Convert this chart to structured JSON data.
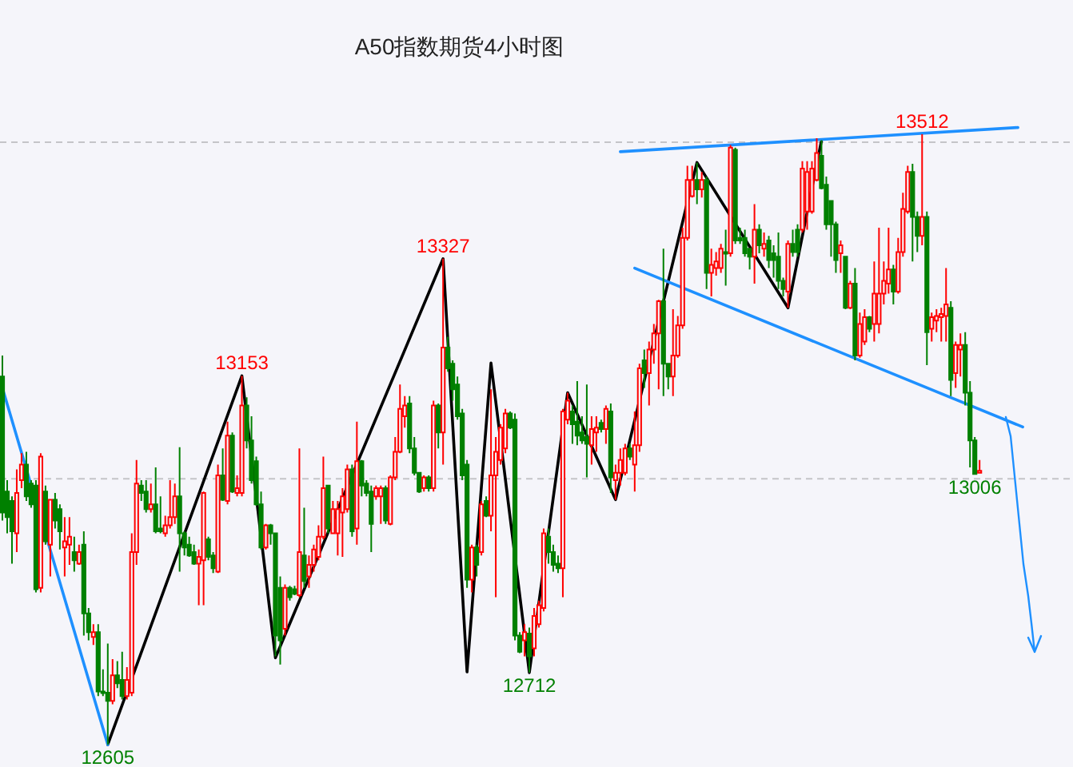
{
  "chart_data": {
    "type": "candlestick",
    "title": "A50指数期货4小时图",
    "categories": [
      null,
      null,
      null,
      null,
      null,
      null,
      null,
      null,
      null,
      null,
      null,
      null,
      null,
      null,
      null,
      null,
      null,
      null,
      null,
      null,
      null,
      null,
      null,
      null,
      null,
      null,
      null,
      null,
      null,
      null,
      null,
      null,
      null,
      null,
      null,
      null,
      null,
      null,
      null,
      null,
      null,
      null,
      null,
      null,
      null,
      null,
      null,
      null,
      null,
      null,
      null,
      null,
      null,
      null,
      null,
      null,
      null,
      null,
      null,
      null,
      null,
      null,
      null,
      null,
      null,
      null,
      null,
      null,
      null,
      null,
      null,
      null,
      null,
      null,
      null,
      null,
      null,
      null,
      null,
      null,
      null,
      null,
      null,
      null,
      null,
      null,
      null,
      null,
      null,
      null,
      null,
      null,
      null,
      null,
      null,
      null,
      null,
      null,
      null,
      null,
      null,
      null,
      null,
      null,
      null,
      null,
      null,
      null,
      null,
      null,
      null,
      null,
      null,
      null,
      null,
      null,
      null,
      null,
      null,
      null,
      null,
      null,
      null,
      null,
      null,
      null,
      null,
      null,
      null,
      null,
      null,
      null,
      null,
      null,
      null,
      null,
      null,
      null,
      null,
      null,
      null,
      null,
      null,
      null,
      null,
      null,
      null,
      null,
      null,
      null,
      null,
      null,
      null,
      null,
      null,
      null,
      null,
      null,
      null,
      null,
      null,
      null,
      null,
      null,
      null,
      null,
      null,
      null,
      null,
      null,
      null,
      null,
      null,
      null,
      null,
      null,
      null,
      null,
      null,
      null,
      null,
      null,
      null,
      null,
      null,
      null,
      null,
      null,
      null,
      null,
      null,
      null,
      null,
      null,
      null,
      null,
      null,
      null,
      null,
      null,
      null,
      null,
      null,
      null,
      null,
      null,
      null,
      null,
      null,
      null,
      null,
      null,
      null,
      null,
      null,
      null,
      null,
      null,
      null,
      null,
      null,
      null,
      null,
      null
    ],
    "ohlc": [
      [
        13152,
        13183,
        12938,
        12950
      ],
      [
        12981,
        12998,
        12919,
        12943
      ],
      [
        12967,
        12974,
        12874,
        12922
      ],
      [
        12919,
        13014,
        12891,
        12979
      ],
      [
        12998,
        13038,
        12986,
        13021
      ],
      [
        13021,
        13040,
        12967,
        12974
      ],
      [
        12993,
        12998,
        12957,
        12962
      ],
      [
        12990,
        12998,
        12831,
        12836
      ],
      [
        12838,
        13038,
        12831,
        13033
      ],
      [
        12981,
        12990,
        12902,
        12907
      ],
      [
        12902,
        12969,
        12855,
        12969
      ],
      [
        12969,
        12979,
        12926,
        12938
      ],
      [
        12955,
        12962,
        12895,
        12922
      ],
      [
        12898,
        12943,
        12855,
        12907
      ],
      [
        12902,
        12943,
        12872,
        12914
      ],
      [
        12891,
        12914,
        12862,
        12879
      ],
      [
        12874,
        12902,
        12872,
        12891
      ],
      [
        12902,
        12922,
        12767,
        12800
      ],
      [
        12800,
        12808,
        12760,
        12772
      ],
      [
        12765,
        12784,
        12753,
        12772
      ],
      [
        12772,
        12784,
        12677,
        12684
      ],
      [
        12684,
        12717,
        12677,
        12682
      ],
      [
        12682,
        12755,
        12605,
        12670
      ],
      [
        12670,
        12732,
        12665,
        12708
      ],
      [
        12708,
        12729,
        12689,
        12696
      ],
      [
        12701,
        12743,
        12672,
        12677
      ],
      [
        12677,
        12720,
        12672,
        12701
      ],
      [
        12682,
        12919,
        12677,
        12891
      ],
      [
        12891,
        13028,
        12872,
        12993
      ],
      [
        12990,
        12998,
        12967,
        12979
      ],
      [
        12981,
        12998,
        12950,
        12955
      ],
      [
        12955,
        12993,
        12950,
        12962
      ],
      [
        12962,
        13017,
        12919,
        12922
      ],
      [
        12926,
        12974,
        12919,
        12922
      ],
      [
        12919,
        12945,
        12914,
        12931
      ],
      [
        12931,
        12998,
        12926,
        12943
      ],
      [
        12943,
        12993,
        12933,
        12974
      ],
      [
        12974,
        13047,
        12862,
        12919
      ],
      [
        12919,
        12922,
        12886,
        12898
      ],
      [
        12902,
        12914,
        12884,
        12886
      ],
      [
        12891,
        12902,
        12872,
        12874
      ],
      [
        12874,
        12895,
        12812,
        12884
      ],
      [
        12879,
        12981,
        12812,
        12979
      ],
      [
        12910,
        12914,
        12879,
        12884
      ],
      [
        12886,
        12891,
        12860,
        12867
      ],
      [
        12862,
        13021,
        12860,
        13005
      ],
      [
        13005,
        13045,
        12967,
        12969
      ],
      [
        12967,
        13085,
        12962,
        13064
      ],
      [
        13064,
        13069,
        12979,
        12981
      ],
      [
        12979,
        13005,
        12974,
        12986
      ],
      [
        12979,
        13153,
        12974,
        13109
      ],
      [
        13109,
        13121,
        13045,
        13057
      ],
      [
        13057,
        13093,
        12993,
        12998
      ],
      [
        13026,
        13033,
        12960,
        12962
      ],
      [
        12962,
        12981,
        12895,
        12898
      ],
      [
        12898,
        12933,
        12895,
        12931
      ],
      [
        12931,
        12933,
        12902,
        12919
      ],
      [
        12919,
        12919,
        12736,
        12767
      ],
      [
        12838,
        12855,
        12724,
        12760
      ],
      [
        12777,
        12843,
        12767,
        12838
      ],
      [
        12838,
        12841,
        12819,
        12824
      ],
      [
        12836,
        12841,
        12827,
        12829
      ],
      [
        12827,
        13045,
        12824,
        12891
      ],
      [
        12886,
        12957,
        12838,
        12848
      ],
      [
        12855,
        12886,
        12838,
        12872
      ],
      [
        12872,
        12902,
        12862,
        12895
      ],
      [
        12884,
        12931,
        12879,
        12914
      ],
      [
        12914,
        13033,
        12910,
        12986
      ],
      [
        12990,
        12990,
        12919,
        12926
      ],
      [
        12919,
        12967,
        12919,
        12955
      ],
      [
        12919,
        12967,
        12886,
        12955
      ],
      [
        12950,
        12986,
        12884,
        12974
      ],
      [
        12955,
        13021,
        12950,
        13014
      ],
      [
        13014,
        13021,
        12914,
        12922
      ],
      [
        12926,
        13085,
        12902,
        13026
      ],
      [
        13026,
        13028,
        12974,
        12990
      ],
      [
        12993,
        12998,
        12974,
        12979
      ],
      [
        12981,
        12990,
        12891,
        12933
      ],
      [
        12974,
        12990,
        12969,
        12986
      ],
      [
        12974,
        12990,
        12933,
        12986
      ],
      [
        12986,
        12990,
        12933,
        12938
      ],
      [
        12933,
        13005,
        12931,
        13002
      ],
      [
        13002,
        13062,
        12998,
        13040
      ],
      [
        13040,
        13140,
        13038,
        13104
      ],
      [
        13093,
        13123,
        13076,
        13109
      ],
      [
        13112,
        13123,
        13038,
        13045
      ],
      [
        13045,
        13062,
        13005,
        13009
      ],
      [
        13009,
        13009,
        12979,
        12981
      ],
      [
        12986,
        13005,
        12981,
        13002
      ],
      [
        13002,
        13005,
        12981,
        12986
      ],
      [
        12986,
        13116,
        12981,
        13109
      ],
      [
        13109,
        13112,
        13045,
        13069
      ],
      [
        13069,
        13327,
        13021,
        13195
      ],
      [
        13195,
        13211,
        13159,
        13164
      ],
      [
        13171,
        13176,
        13116,
        13133
      ],
      [
        13140,
        13152,
        13088,
        13093
      ],
      [
        13097,
        13104,
        12998,
        13005
      ],
      [
        13021,
        13028,
        12838,
        12850
      ],
      [
        12850,
        12902,
        12831,
        12898
      ],
      [
        12898,
        12902,
        12855,
        12872
      ],
      [
        12891,
        12967,
        12886,
        12962
      ],
      [
        12967,
        12974,
        12943,
        12945
      ],
      [
        12945,
        13133,
        12922,
        13005
      ],
      [
        13005,
        13062,
        12824,
        13040
      ],
      [
        13028,
        13081,
        13021,
        13076
      ],
      [
        13045,
        13104,
        13038,
        13097
      ],
      [
        13097,
        13100,
        13074,
        13076
      ],
      [
        13088,
        13097,
        12760,
        12767
      ],
      [
        12767,
        12772,
        12741,
        12743
      ],
      [
        12760,
        12784,
        12736,
        12772
      ],
      [
        12770,
        12779,
        12712,
        12736
      ],
      [
        12748,
        12808,
        12736,
        12796
      ],
      [
        12784,
        12819,
        12779,
        12812
      ],
      [
        12808,
        12926,
        12803,
        12919
      ],
      [
        12914,
        12926,
        12874,
        12891
      ],
      [
        12891,
        12902,
        12862,
        12872
      ],
      [
        12874,
        12886,
        12860,
        12867
      ],
      [
        12867,
        13104,
        12824,
        13100
      ],
      [
        13088,
        13128,
        13081,
        13116
      ],
      [
        13100,
        13109,
        13052,
        13081
      ],
      [
        13085,
        13145,
        13050,
        13064
      ],
      [
        13069,
        13093,
        13052,
        13057
      ],
      [
        13062,
        13140,
        13002,
        13052
      ],
      [
        13050,
        13093,
        13021,
        13074
      ],
      [
        13069,
        13093,
        13040,
        13076
      ],
      [
        13083,
        13088,
        13069,
        13074
      ],
      [
        13074,
        13109,
        13052,
        13104
      ],
      [
        13100,
        13112,
        12979,
        13002
      ],
      [
        12998,
        13021,
        12969,
        13009
      ],
      [
        13009,
        13045,
        12990,
        13028
      ],
      [
        13009,
        13052,
        13005,
        13045
      ],
      [
        13045,
        13052,
        13028,
        13033
      ],
      [
        13021,
        13100,
        12981,
        13050
      ],
      [
        13050,
        13171,
        13040,
        13164
      ],
      [
        13176,
        13192,
        13135,
        13157
      ],
      [
        13157,
        13204,
        13109,
        13192
      ],
      [
        13192,
        13230,
        13171,
        13216
      ],
      [
        13216,
        13266,
        13133,
        13264
      ],
      [
        13264,
        13342,
        13123,
        13171
      ],
      [
        13171,
        13171,
        13133,
        13152
      ],
      [
        13152,
        13252,
        13123,
        13183
      ],
      [
        13183,
        13242,
        13180,
        13228
      ],
      [
        13228,
        13373,
        13223,
        13358
      ],
      [
        13358,
        13465,
        13354,
        13444
      ],
      [
        13420,
        13465,
        13418,
        13444
      ],
      [
        13444,
        13470,
        13408,
        13430
      ],
      [
        13430,
        13456,
        13418,
        13444
      ],
      [
        13444,
        13449,
        13282,
        13306
      ],
      [
        13306,
        13342,
        13271,
        13318
      ],
      [
        13313,
        13337,
        13302,
        13323
      ],
      [
        13313,
        13349,
        13306,
        13342
      ],
      [
        13337,
        13370,
        13287,
        13335
      ],
      [
        13335,
        13496,
        13330,
        13492
      ],
      [
        13489,
        13492,
        13349,
        13354
      ],
      [
        13358,
        13373,
        13349,
        13354
      ],
      [
        13358,
        13370,
        13330,
        13335
      ],
      [
        13342,
        13342,
        13311,
        13330
      ],
      [
        13330,
        13408,
        13290,
        13370
      ],
      [
        13370,
        13378,
        13335,
        13347
      ],
      [
        13342,
        13366,
        13330,
        13349
      ],
      [
        13354,
        13361,
        13313,
        13325
      ],
      [
        13335,
        13347,
        13299,
        13325
      ],
      [
        13330,
        13366,
        13282,
        13294
      ],
      [
        13294,
        13299,
        13271,
        13282
      ],
      [
        13278,
        13354,
        13254,
        13349
      ],
      [
        13349,
        13370,
        13330,
        13337
      ],
      [
        13370,
        13378,
        13330,
        13337
      ],
      [
        13370,
        13472,
        13366,
        13461
      ],
      [
        13397,
        13472,
        13370,
        13456
      ],
      [
        13397,
        13472,
        13394,
        13461
      ],
      [
        13444,
        13506,
        13442,
        13484
      ],
      [
        13480,
        13503,
        13430,
        13432
      ],
      [
        13437,
        13449,
        13370,
        13378
      ],
      [
        13413,
        13413,
        13330,
        13378
      ],
      [
        13378,
        13382,
        13306,
        13325
      ],
      [
        13335,
        13354,
        13306,
        13347
      ],
      [
        13330,
        13330,
        13252,
        13254
      ],
      [
        13254,
        13294,
        13252,
        13290
      ],
      [
        13290,
        13313,
        13176,
        13183
      ],
      [
        13183,
        13247,
        13180,
        13230
      ],
      [
        13204,
        13252,
        13199,
        13240
      ],
      [
        13240,
        13242,
        13218,
        13223
      ],
      [
        13230,
        13323,
        13204,
        13275
      ],
      [
        13230,
        13373,
        13216,
        13275
      ],
      [
        13275,
        13323,
        13259,
        13294
      ],
      [
        13290,
        13373,
        13275,
        13311
      ],
      [
        13311,
        13318,
        13259,
        13278
      ],
      [
        13278,
        13358,
        13275,
        13337
      ],
      [
        13337,
        13425,
        13330,
        13401
      ],
      [
        13397,
        13465,
        13394,
        13456
      ],
      [
        13456,
        13468,
        13323,
        13389
      ],
      [
        13389,
        13397,
        13337,
        13361
      ],
      [
        13361,
        13512,
        13347,
        13389
      ],
      [
        13389,
        13397,
        13169,
        13218
      ],
      [
        13223,
        13247,
        13204,
        13240
      ],
      [
        13235,
        13252,
        13218,
        13242
      ],
      [
        13240,
        13254,
        13204,
        13245
      ],
      [
        13242,
        13313,
        13204,
        13259
      ],
      [
        13254,
        13264,
        13123,
        13147
      ],
      [
        13157,
        13204,
        13135,
        13199
      ],
      [
        13192,
        13216,
        13152,
        13199
      ],
      [
        13199,
        13218,
        13109,
        13128
      ],
      [
        13128,
        13145,
        13017,
        13057
      ],
      [
        13057,
        13062,
        13006,
        13007
      ],
      [
        13009,
        13028,
        13008,
        13012
      ],
      null,
      null,
      null,
      null,
      null,
      null,
      null,
      null,
      null,
      null,
      null,
      null,
      null,
      null,
      null,
      null,
      null,
      null,
      null
    ],
    "colors": [
      "#008000",
      "#008000",
      "#008000",
      "#ff0000",
      "#ff0000",
      "#008000",
      "#008000",
      "#008000",
      "#ff0000",
      "#008000",
      "#ff0000",
      "#008000",
      "#008000",
      "#ff0000",
      "#ff0000",
      "#008000",
      "#ff0000",
      "#008000",
      "#008000",
      "#ff0000",
      "#008000",
      "#008000",
      "#008000",
      "#ff0000",
      "#008000",
      "#008000",
      "#ff0000",
      "#ff0000",
      "#ff0000",
      "#008000",
      "#008000",
      "#ff0000",
      "#008000",
      "#008000",
      "#ff0000",
      "#ff0000",
      "#ff0000",
      "#008000",
      "#008000",
      "#008000",
      "#008000",
      "#ff0000",
      "#ff0000",
      "#008000",
      "#008000",
      "#ff0000",
      "#008000",
      "#ff0000",
      "#008000",
      "#ff0000",
      "#ff0000",
      "#008000",
      "#008000",
      "#008000",
      "#008000",
      "#ff0000",
      "#008000",
      "#008000",
      "#008000",
      "#ff0000",
      "#008000",
      "#008000",
      "#ff0000",
      "#008000",
      "#ff0000",
      "#ff0000",
      "#ff0000",
      "#ff0000",
      "#008000",
      "#ff0000",
      "#ff0000",
      "#ff0000",
      "#ff0000",
      "#008000",
      "#ff0000",
      "#008000",
      "#008000",
      "#008000",
      "#ff0000",
      "#ff0000",
      "#008000",
      "#ff0000",
      "#ff0000",
      "#ff0000",
      "#ff0000",
      "#008000",
      "#008000",
      "#008000",
      "#ff0000",
      "#008000",
      "#ff0000",
      "#008000",
      "#ff0000",
      "#008000",
      "#008000",
      "#008000",
      "#008000",
      "#008000",
      "#ff0000",
      "#008000",
      "#ff0000",
      "#008000",
      "#ff0000",
      "#ff0000",
      "#ff0000",
      "#ff0000",
      "#008000",
      "#008000",
      "#008000",
      "#ff0000",
      "#008000",
      "#ff0000",
      "#ff0000",
      "#ff0000",
      "#008000",
      "#008000",
      "#008000",
      "#ff0000",
      "#ff0000",
      "#008000",
      "#008000",
      "#008000",
      "#008000",
      "#ff0000",
      "#ff0000",
      "#008000",
      "#ff0000",
      "#008000",
      "#ff0000",
      "#ff0000",
      "#ff0000",
      "#008000",
      "#ff0000",
      "#ff0000",
      "#008000",
      "#ff0000",
      "#ff0000",
      "#ff0000",
      "#008000",
      "#008000",
      "#ff0000",
      "#ff0000",
      "#ff0000",
      "#ff0000",
      "#ff0000",
      "#008000",
      "#ff0000",
      "#008000",
      "#ff0000",
      "#ff0000",
      "#ff0000",
      "#008000",
      "#ff0000",
      "#008000",
      "#008000",
      "#008000",
      "#008000",
      "#ff0000",
      "#008000",
      "#ff0000",
      "#008000",
      "#008000",
      "#008000",
      "#008000",
      "#ff0000",
      "#008000",
      "#008000",
      "#ff0000",
      "#ff0000",
      "#ff0000",
      "#ff0000",
      "#008000",
      "#008000",
      "#008000",
      "#008000",
      "#ff0000",
      "#008000",
      "#ff0000",
      "#008000",
      "#ff0000",
      "#ff0000",
      "#008000",
      "#ff0000",
      "#ff0000",
      "#ff0000",
      "#ff0000",
      "#008000",
      "#ff0000",
      "#ff0000",
      "#ff0000",
      "#008000",
      "#008000",
      "#ff0000",
      "#008000",
      "#ff0000",
      "#ff0000",
      "#ff0000",
      "#ff0000",
      "#008000",
      "#ff0000",
      "#ff0000",
      "#008000",
      "#008000",
      "#008000",
      "#ff0000",
      null,
      null,
      null,
      null,
      null,
      null,
      null,
      null,
      null,
      null,
      null,
      null,
      null,
      null,
      null,
      null,
      null,
      null,
      null
    ],
    "series": [
      {
        "type": "line",
        "color": "#000000",
        "values": [
          null,
          null,
          null,
          null,
          null,
          null,
          null,
          null,
          null,
          null,
          null,
          null,
          null,
          null,
          null,
          null,
          null,
          null,
          null,
          null,
          null,
          null,
          12605,
          null,
          null,
          null,
          null,
          null,
          null,
          null,
          null,
          null,
          null,
          null,
          null,
          null,
          null,
          null,
          null,
          null,
          null,
          null,
          null,
          null,
          null,
          null,
          null,
          null,
          null,
          null,
          13153,
          null,
          null,
          null,
          null,
          null,
          null,
          12734,
          null,
          null,
          null,
          null,
          null,
          null,
          null,
          null,
          null,
          null,
          null,
          null,
          null,
          null,
          null,
          null,
          null,
          null,
          null,
          null,
          null,
          null,
          null,
          null,
          null,
          null,
          null,
          null,
          null,
          null,
          null,
          null,
          null,
          null,
          13327,
          null,
          null,
          null,
          null,
          12713,
          null,
          null,
          null,
          null,
          13172,
          null,
          null,
          null,
          null,
          null,
          null,
          null,
          12712,
          null,
          null,
          null,
          null,
          null,
          null,
          null,
          13128,
          null,
          null,
          null,
          null,
          null,
          null,
          null,
          null,
          null,
          12969,
          null,
          null,
          null,
          null,
          null,
          null,
          null,
          null,
          null,
          null,
          null,
          null,
          null,
          null,
          null,
          null,
          13470,
          null,
          null,
          null,
          null,
          null,
          null,
          null,
          null,
          null,
          null,
          null,
          null,
          null,
          null,
          null,
          null,
          null,
          null,
          13254,
          null,
          null,
          null,
          null,
          null,
          null,
          13503,
          null,
          null,
          null,
          null,
          null,
          null,
          null,
          null,
          null,
          null,
          null,
          null,
          null,
          null,
          null,
          null,
          null,
          null,
          null,
          null,
          null,
          null,
          null,
          null,
          null,
          null,
          null,
          null,
          null,
          null,
          null,
          null,
          null,
          null,
          null,
          null,
          null,
          null,
          null,
          null,
          null,
          null,
          null,
          null,
          null,
          null,
          null,
          null,
          null,
          null,
          null,
          null
        ]
      },
      {
        "type": "line",
        "color": "#1e90ff",
        "values": [
          13135,
          null,
          null,
          null,
          null,
          null,
          null,
          null,
          null,
          null,
          null,
          null,
          null,
          null,
          null,
          null,
          null,
          null,
          null,
          null,
          null,
          null,
          12605,
          null,
          null,
          null,
          null,
          null,
          null,
          null,
          null,
          null,
          null,
          null,
          null,
          null,
          null,
          null,
          null,
          null,
          null,
          null,
          null,
          null,
          null,
          null,
          null,
          null,
          null,
          null,
          null,
          null,
          null,
          null,
          null,
          null,
          null,
          null,
          null,
          null,
          null,
          null,
          null,
          null,
          null,
          null,
          null,
          null,
          null,
          null,
          null,
          null,
          null,
          null,
          null,
          null,
          null,
          null,
          null,
          null,
          null,
          null,
          null,
          null,
          null,
          null,
          null,
          null,
          null,
          null,
          null,
          null,
          null,
          null,
          null,
          null,
          null,
          null,
          null,
          null,
          null,
          null,
          null,
          null,
          null,
          null,
          null,
          null,
          null,
          null,
          null,
          null,
          null,
          null,
          null,
          null,
          null,
          null,
          null,
          null,
          null,
          null,
          null,
          null,
          null,
          null,
          null,
          null,
          null,
          null,
          null,
          null,
          null,
          null,
          null,
          null,
          null,
          null,
          null,
          null,
          null,
          null,
          null,
          null,
          null,
          null,
          null,
          null,
          null,
          null,
          null,
          null,
          null,
          null,
          null,
          null,
          null,
          null,
          null,
          null,
          null,
          null,
          null,
          null,
          null,
          null,
          null,
          null,
          null,
          null,
          null,
          null,
          null,
          null,
          null,
          null,
          null,
          null,
          null,
          null,
          null,
          null,
          null,
          null,
          null,
          null,
          null,
          null,
          null,
          null,
          null,
          null,
          null,
          null,
          null,
          null,
          null,
          null,
          null,
          null,
          null,
          null,
          null,
          null,
          null,
          null,
          null,
          null,
          null,
          null,
          null,
          null,
          null,
          null,
          null,
          null,
          null,
          null,
          null,
          null,
          null,
          null,
          null,
          null
        ]
      },
      {
        "type": "line",
        "color": "#1e90ff",
        "values": [
          null,
          null,
          null,
          null,
          null,
          null,
          null,
          null,
          null,
          null,
          null,
          null,
          null,
          null,
          null,
          null,
          null,
          null,
          null,
          null,
          null,
          null,
          null,
          null,
          null,
          null,
          null,
          null,
          null,
          null,
          null,
          null,
          null,
          null,
          null,
          null,
          null,
          null,
          null,
          null,
          null,
          null,
          null,
          null,
          null,
          null,
          null,
          null,
          null,
          null,
          null,
          null,
          null,
          null,
          null,
          null,
          null,
          null,
          null,
          null,
          null,
          null,
          null,
          null,
          null,
          null,
          null,
          null,
          null,
          null,
          null,
          null,
          null,
          null,
          null,
          null,
          null,
          null,
          null,
          null,
          null,
          null,
          null,
          null,
          null,
          null,
          null,
          null,
          null,
          null,
          null,
          null,
          null,
          null,
          null,
          null,
          null,
          null,
          null,
          null,
          null,
          null,
          null,
          null,
          null,
          null,
          null,
          null,
          null,
          null,
          null,
          null,
          null,
          null,
          null,
          null,
          null,
          null,
          null,
          null,
          null,
          null,
          null,
          null,
          null,
          null,
          null,
          null,
          null,
          13486,
          null,
          null,
          null,
          null,
          null,
          null,
          null,
          null,
          null,
          null,
          null,
          null,
          null,
          null,
          null,
          null,
          null,
          null,
          null,
          null,
          null,
          null,
          null,
          null,
          null,
          null,
          null,
          null,
          null,
          null,
          null,
          null,
          null,
          null,
          null,
          null,
          null,
          null,
          null,
          null,
          null,
          null,
          null,
          null,
          null,
          null,
          null,
          null,
          null,
          null,
          null,
          null,
          null,
          null,
          null,
          null,
          null,
          null,
          null,
          null,
          null,
          null,
          null,
          null,
          null,
          null,
          null,
          null,
          null,
          null,
          null,
          null,
          null,
          null,
          null,
          null,
          null,
          null,
          null,
          null,
          null,
          null,
          13522,
          null,
          null,
          null,
          null,
          null,
          null,
          null,
          null,
          null,
          null,
          null
        ]
      },
      {
        "type": "line",
        "color": "#1e90ff",
        "values": [
          null,
          null,
          null,
          null,
          null,
          null,
          null,
          null,
          null,
          null,
          null,
          null,
          null,
          null,
          null,
          null,
          null,
          null,
          null,
          null,
          null,
          null,
          null,
          null,
          null,
          null,
          null,
          null,
          null,
          null,
          null,
          null,
          null,
          null,
          null,
          null,
          null,
          null,
          null,
          null,
          null,
          null,
          null,
          null,
          null,
          null,
          null,
          null,
          null,
          null,
          null,
          null,
          null,
          null,
          null,
          null,
          null,
          null,
          null,
          null,
          null,
          null,
          null,
          null,
          null,
          null,
          null,
          null,
          null,
          null,
          null,
          null,
          null,
          null,
          null,
          null,
          null,
          null,
          null,
          null,
          null,
          null,
          null,
          null,
          null,
          null,
          null,
          null,
          null,
          null,
          null,
          null,
          null,
          null,
          null,
          null,
          null,
          null,
          null,
          null,
          null,
          null,
          null,
          null,
          null,
          null,
          null,
          null,
          null,
          null,
          null,
          null,
          null,
          null,
          null,
          null,
          null,
          null,
          null,
          null,
          null,
          null,
          null,
          null,
          null,
          null,
          null,
          null,
          null,
          null,
          null,
          null,
          13313,
          null,
          null,
          null,
          null,
          null,
          null,
          null,
          null,
          null,
          null,
          null,
          null,
          null,
          null,
          null,
          null,
          null,
          null,
          null,
          null,
          null,
          null,
          null,
          null,
          null,
          null,
          null,
          null,
          null,
          null,
          null,
          null,
          null,
          null,
          null,
          null,
          null,
          null,
          null,
          null,
          null,
          null,
          null,
          null,
          null,
          null,
          null,
          null,
          null,
          null,
          null,
          null,
          null,
          null,
          null,
          null,
          null,
          null,
          null,
          null,
          null,
          null,
          null,
          null,
          null,
          null,
          null,
          null,
          null,
          null,
          null,
          null,
          null,
          null,
          null,
          null,
          null,
          null,
          null,
          null,
          13077,
          null,
          null,
          null,
          null,
          null,
          null,
          null,
          null,
          null,
          null
        ]
      }
    ],
    "annotations": [
      {
        "text": "12605",
        "y": 12605
      },
      {
        "text": "13153",
        "y": 13153
      },
      {
        "text": "13327",
        "y": 13327
      },
      {
        "text": "12712",
        "y": 12712
      },
      {
        "text": "13512",
        "y": 13512
      },
      {
        "text": "13006",
        "y": 13006
      }
    ],
    "yticks": [
      {
        "value": 13000,
        "label": null
      },
      {
        "value": 13500,
        "label": null
      }
    ],
    "grid": "y"
  }
}
